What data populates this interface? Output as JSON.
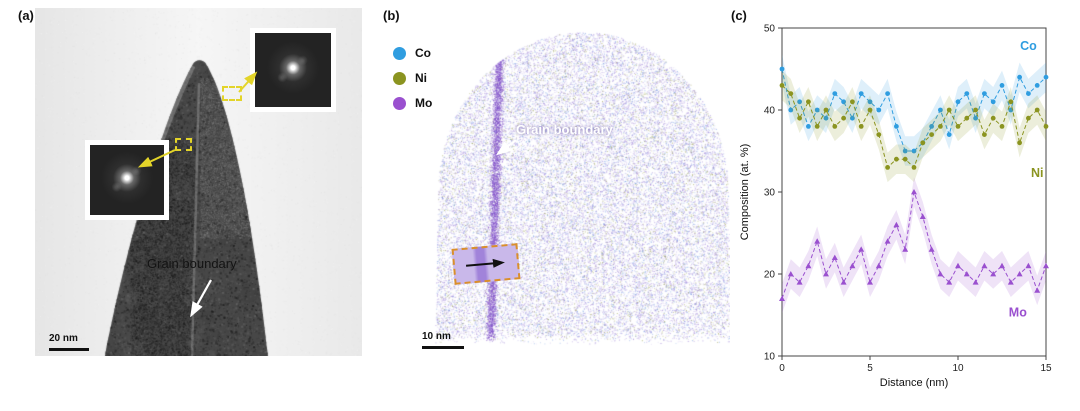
{
  "figure": {
    "panels": {
      "a": {
        "label": "(a)",
        "grain_boundary_label": "Grain boundary",
        "scale_bar": "20 nm"
      },
      "b": {
        "label": "(b)",
        "grain_boundary_label": "Grain boundary",
        "scale_bar": "10 nm",
        "legend": [
          {
            "name": "Co",
            "color": "#2f9de0"
          },
          {
            "name": "Ni",
            "color": "#8b9420"
          },
          {
            "name": "Mo",
            "color": "#9a50cf"
          }
        ]
      },
      "c": {
        "label": "(c)"
      }
    }
  },
  "chart_data": {
    "type": "line",
    "title": "",
    "xlabel": "Distance (nm)",
    "ylabel": "Composition (at. %)",
    "xlim": [
      0,
      15
    ],
    "ylim": [
      10,
      50
    ],
    "xticks": [
      0,
      5,
      10,
      15
    ],
    "yticks": [
      10,
      20,
      30,
      40,
      50
    ],
    "grid": false,
    "legend_position": "inline-right",
    "x": [
      0,
      0.5,
      1,
      1.5,
      2,
      2.5,
      3,
      3.5,
      4,
      4.5,
      5,
      5.5,
      6,
      6.5,
      7,
      7.5,
      8,
      8.5,
      9,
      9.5,
      10,
      10.5,
      11,
      11.5,
      12,
      12.5,
      13,
      13.5,
      14,
      14.5,
      15
    ],
    "series": [
      {
        "name": "Co",
        "color": "#2f9de0",
        "marker": "circle",
        "linestyle": "dashed",
        "band": 1.8,
        "values": [
          45,
          40,
          41,
          38,
          40,
          39,
          42,
          41,
          39,
          42,
          41,
          40,
          42,
          38,
          35,
          35,
          36,
          38,
          40,
          37,
          41,
          42,
          39,
          42,
          41,
          43,
          40,
          44,
          42,
          43,
          44
        ]
      },
      {
        "name": "Ni",
        "color": "#8b9420",
        "marker": "circle",
        "linestyle": "dashed",
        "band": 1.8,
        "values": [
          43,
          42,
          39,
          41,
          38,
          40,
          38,
          39,
          41,
          38,
          40,
          37,
          33,
          34,
          34,
          33,
          36,
          37,
          38,
          40,
          38,
          39,
          40,
          37,
          39,
          38,
          41,
          36,
          39,
          40,
          38
        ]
      },
      {
        "name": "Mo",
        "color": "#9a50cf",
        "marker": "triangle",
        "linestyle": "dashed",
        "band": 1.8,
        "values": [
          17,
          20,
          19,
          21,
          24,
          20,
          22,
          19,
          21,
          23,
          19,
          21,
          24,
          26,
          23,
          30,
          27,
          23,
          20,
          19,
          21,
          20,
          19,
          21,
          20,
          21,
          19,
          20,
          21,
          18,
          21
        ]
      }
    ]
  }
}
